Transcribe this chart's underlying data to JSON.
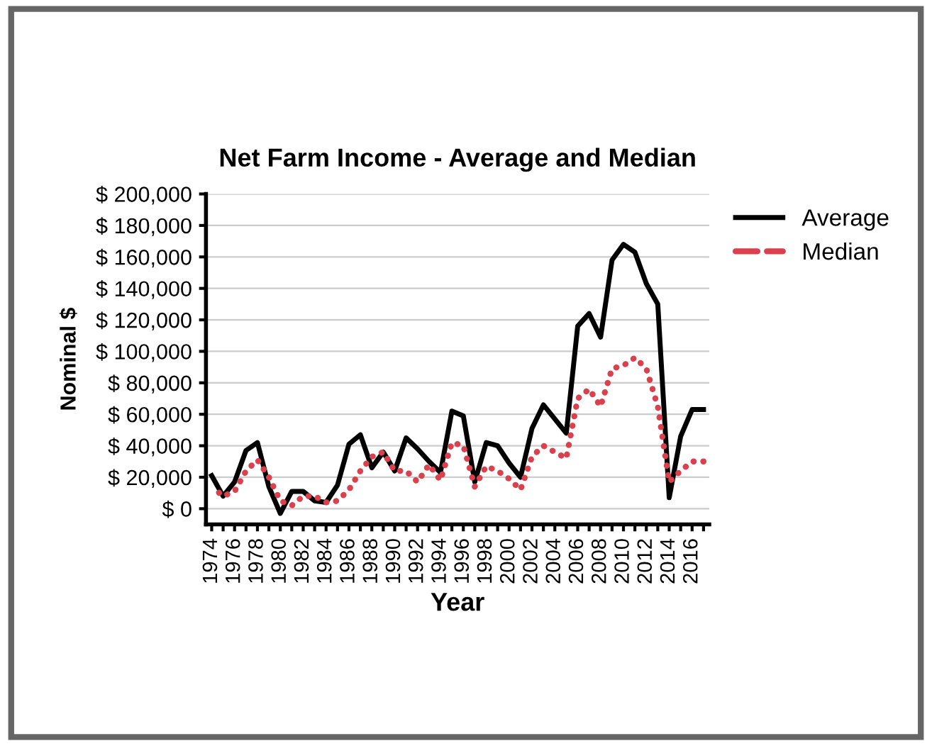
{
  "chart_data": {
    "type": "line",
    "title": "Net Farm Income - Average and Median",
    "xlabel": "Year",
    "ylabel": "Nominal $",
    "categories": [
      "1974",
      null,
      "1976",
      null,
      "1978",
      null,
      "1980",
      null,
      "1982",
      null,
      "1984",
      null,
      "1986",
      null,
      "1988",
      null,
      "1990",
      null,
      "1992",
      null,
      "1994",
      null,
      "1996",
      null,
      "1998",
      null,
      "2000",
      null,
      "2002",
      null,
      "2004",
      null,
      "2006",
      null,
      "2008",
      null,
      "2010",
      null,
      "2012",
      null,
      "2014",
      null,
      "2016",
      null
    ],
    "series": [
      {
        "name": "Average",
        "color": "#000000",
        "line_style": "solid",
        "values": [
          21000,
          8000,
          17000,
          37000,
          42000,
          14000,
          -3000,
          11000,
          11000,
          5000,
          4000,
          15000,
          41000,
          47000,
          26000,
          36000,
          24000,
          45000,
          38000,
          30000,
          23000,
          62000,
          59000,
          17000,
          42000,
          40000,
          29000,
          20000,
          51000,
          66000,
          57000,
          48000,
          116000,
          124000,
          109000,
          158000,
          168000,
          163000,
          143000,
          130000,
          7000,
          46000,
          63000,
          63000
        ]
      },
      {
        "name": "Median",
        "color": "#d9414e",
        "line_style": "dotted",
        "values": [
          14000,
          8000,
          11000,
          24000,
          31000,
          20000,
          5000,
          2000,
          8000,
          8000,
          4000,
          5000,
          12000,
          24000,
          33000,
          36000,
          24000,
          24000,
          17000,
          28000,
          18000,
          42000,
          40000,
          14000,
          27000,
          24000,
          19000,
          12000,
          33000,
          40000,
          36000,
          32000,
          70000,
          76000,
          65000,
          89000,
          91000,
          96000,
          89000,
          65000,
          17000,
          24000,
          30000,
          30000
        ]
      }
    ],
    "ylim": [
      -10000,
      200000
    ],
    "yticks": [
      {
        "value": 0,
        "label": "$ 0"
      },
      {
        "value": 20000,
        "label": "$ 20,000"
      },
      {
        "value": 40000,
        "label": "$ 40,000"
      },
      {
        "value": 60000,
        "label": "$ 60,000"
      },
      {
        "value": 80000,
        "label": "$ 80,000"
      },
      {
        "value": 100000,
        "label": "$ 100,000"
      },
      {
        "value": 120000,
        "label": "$ 120,000"
      },
      {
        "value": 140000,
        "label": "$ 140,000"
      },
      {
        "value": 160000,
        "label": "$ 160,000"
      },
      {
        "value": 180000,
        "label": "$ 180,000"
      },
      {
        "value": 200000,
        "label": "$ 200,000"
      }
    ],
    "grid": "y",
    "legend": "right",
    "marker": "none"
  }
}
